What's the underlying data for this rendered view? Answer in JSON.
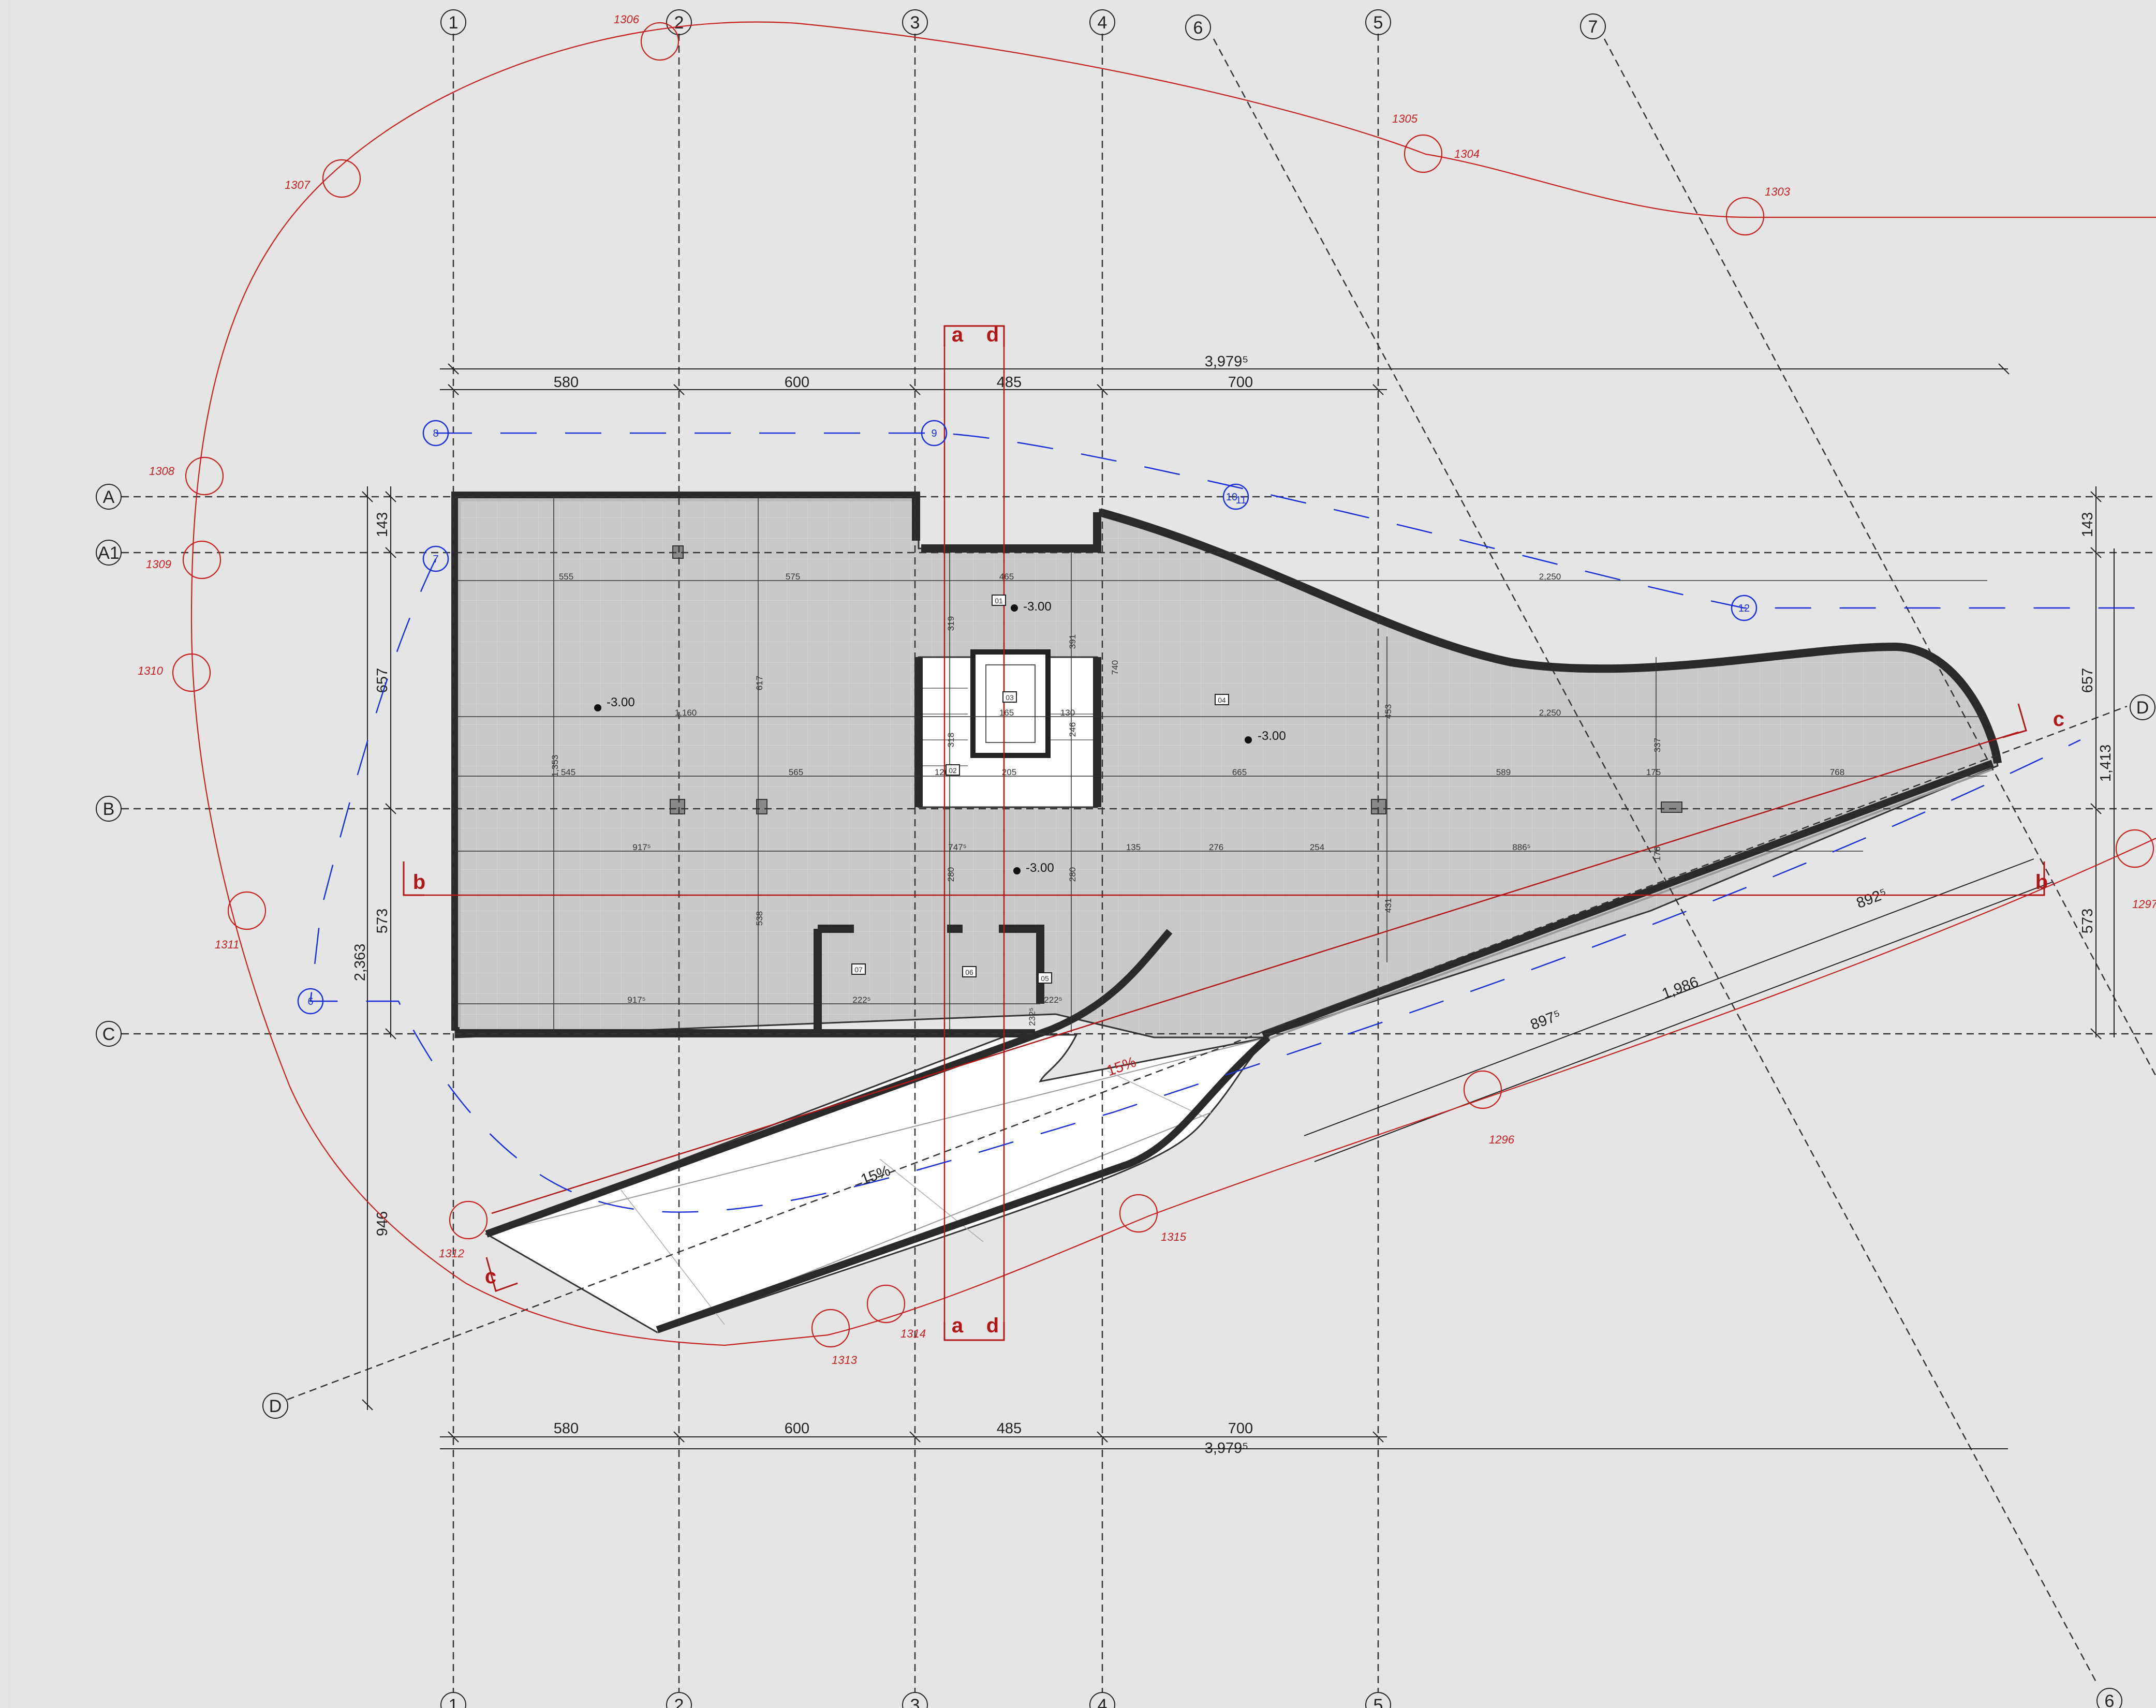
{
  "grid_columns": [
    "1",
    "2",
    "3",
    "4",
    "5",
    "6",
    "7"
  ],
  "grid_rows": [
    "A",
    "A1",
    "B",
    "C",
    "D"
  ],
  "dimensions_top": [
    "580",
    "600",
    "485",
    "700"
  ],
  "dimensions_bottom": [
    "580",
    "600",
    "485",
    "700"
  ],
  "total_width": "3,979⁵",
  "left_dims": [
    "143",
    "657",
    "573",
    "2,363",
    "946"
  ],
  "right_dims": [
    "143",
    "657",
    "1,413",
    "573"
  ],
  "diagonal_dims": [
    "897⁵",
    "1,986",
    "892⁵"
  ],
  "slopes": [
    "15%",
    "15%"
  ],
  "levels": [
    "-3.00",
    "-3.00",
    "-3.00",
    "-3.00"
  ],
  "room_tags": [
    "01",
    "02",
    "03",
    "04",
    "05",
    "06",
    "07"
  ],
  "section_markers": {
    "a": "a",
    "b": "b",
    "c": "c",
    "d": "d"
  },
  "survey_points": [
    "1296",
    "1297",
    "1303",
    "1304",
    "1305",
    "1306",
    "1307",
    "1308",
    "1309",
    "1310",
    "1311",
    "1312",
    "1313",
    "1314",
    "1315"
  ],
  "blue_markers": [
    "8",
    "9",
    "10",
    "11",
    "12",
    "6",
    "7"
  ],
  "inner_dims": [
    "20",
    "555",
    "30",
    "575",
    "465",
    "2,250",
    "1,160",
    "20",
    "165",
    "130",
    "20",
    "545",
    "565",
    "126",
    "205",
    "665",
    "589",
    "175",
    "768",
    "917⁵",
    "747⁵",
    "135",
    "276",
    "254",
    "886⁵",
    "917⁵",
    "222⁵",
    "222⁵",
    "319",
    "391",
    "617",
    "453",
    "337",
    "1,353",
    "538",
    "280",
    "280",
    "431",
    "176",
    "246",
    "318",
    "118",
    "20",
    "10",
    "223",
    "232⁵",
    "180",
    "740",
    "30"
  ],
  "colors": {
    "background": "#e3e3e3",
    "slab": "#c9c9c9",
    "wall": "#3a3a3a",
    "survey": "#c62020",
    "section": "#b01818",
    "services": "#1a2fd8",
    "ramp": "#ffffff"
  }
}
